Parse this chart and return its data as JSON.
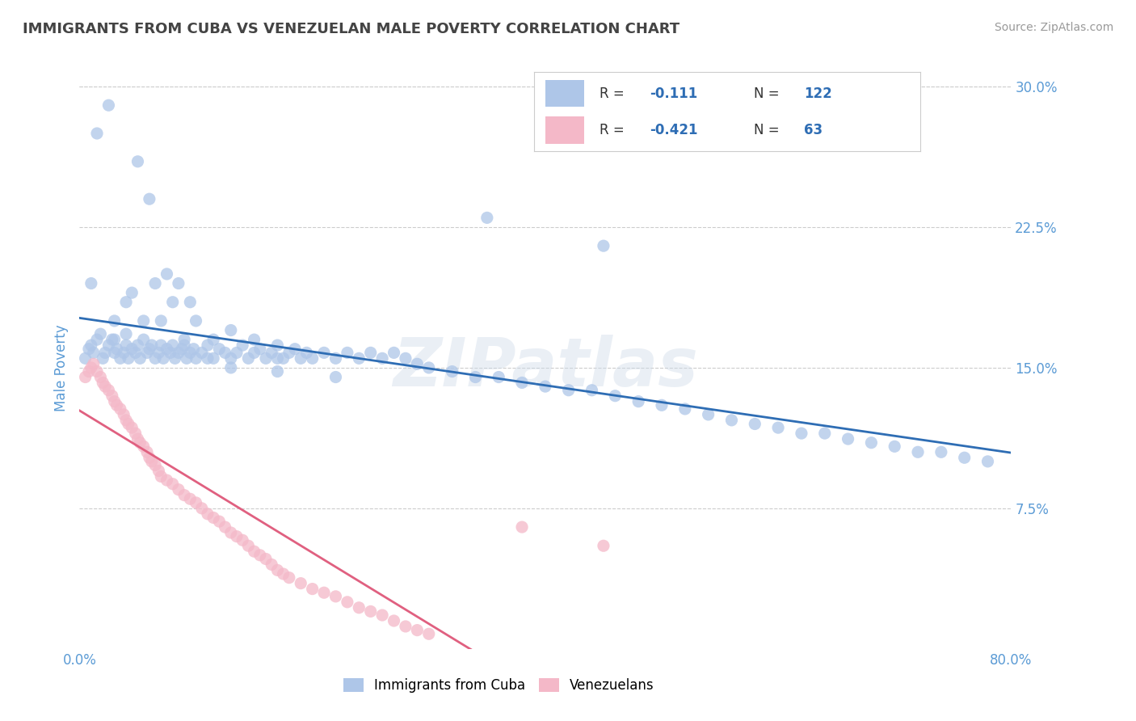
{
  "title": "IMMIGRANTS FROM CUBA VS VENEZUELAN MALE POVERTY CORRELATION CHART",
  "source": "Source: ZipAtlas.com",
  "ylabel": "Male Poverty",
  "xlim": [
    0.0,
    0.8
  ],
  "ylim": [
    0.0,
    0.3
  ],
  "xtick_vals": [
    0.0,
    0.8
  ],
  "xtick_labels": [
    "0.0%",
    "80.0%"
  ],
  "ytick_vals": [
    0.075,
    0.15,
    0.225,
    0.3
  ],
  "ytick_labels": [
    "7.5%",
    "15.0%",
    "22.5%",
    "30.0%"
  ],
  "cuba_color": "#aec6e8",
  "cuba_edge": "none",
  "venezuela_color": "#f4b8c8",
  "venezuela_edge": "none",
  "trend_cuba_color": "#2e6db4",
  "trend_venezuela_color": "#e06080",
  "legend_r_cuba": "-0.111",
  "legend_n_cuba": "122",
  "legend_r_venezuela": "-0.421",
  "legend_n_venezuela": "63",
  "cuba_label": "Immigrants from Cuba",
  "venezuela_label": "Venezuelans",
  "watermark": "ZIPatlas",
  "background_color": "#ffffff",
  "grid_color": "#cccccc",
  "title_color": "#444444",
  "ylabel_color": "#5b9bd5",
  "tick_label_color": "#5b9bd5",
  "cuba_x": [
    0.005,
    0.008,
    0.01,
    0.012,
    0.015,
    0.018,
    0.02,
    0.022,
    0.025,
    0.028,
    0.03,
    0.032,
    0.035,
    0.038,
    0.04,
    0.04,
    0.042,
    0.045,
    0.048,
    0.05,
    0.052,
    0.055,
    0.058,
    0.06,
    0.062,
    0.065,
    0.068,
    0.07,
    0.072,
    0.075,
    0.078,
    0.08,
    0.082,
    0.085,
    0.088,
    0.09,
    0.092,
    0.095,
    0.098,
    0.1,
    0.105,
    0.11,
    0.115,
    0.12,
    0.125,
    0.13,
    0.135,
    0.14,
    0.145,
    0.15,
    0.155,
    0.16,
    0.165,
    0.17,
    0.175,
    0.18,
    0.185,
    0.19,
    0.195,
    0.2,
    0.21,
    0.22,
    0.23,
    0.24,
    0.25,
    0.26,
    0.27,
    0.28,
    0.29,
    0.3,
    0.32,
    0.34,
    0.36,
    0.38,
    0.4,
    0.42,
    0.44,
    0.46,
    0.48,
    0.5,
    0.52,
    0.54,
    0.56,
    0.58,
    0.6,
    0.62,
    0.64,
    0.66,
    0.68,
    0.7,
    0.72,
    0.74,
    0.76,
    0.78,
    0.35,
    0.45,
    0.025,
    0.015,
    0.01,
    0.04,
    0.05,
    0.06,
    0.075,
    0.085,
    0.095,
    0.03,
    0.045,
    0.055,
    0.065,
    0.08,
    0.1,
    0.115,
    0.13,
    0.15,
    0.17,
    0.03,
    0.07,
    0.09,
    0.11,
    0.13,
    0.17,
    0.22
  ],
  "cuba_y": [
    0.155,
    0.16,
    0.162,
    0.158,
    0.165,
    0.168,
    0.155,
    0.158,
    0.162,
    0.165,
    0.158,
    0.16,
    0.155,
    0.158,
    0.162,
    0.168,
    0.155,
    0.16,
    0.158,
    0.162,
    0.155,
    0.165,
    0.158,
    0.16,
    0.162,
    0.155,
    0.158,
    0.162,
    0.155,
    0.16,
    0.158,
    0.162,
    0.155,
    0.158,
    0.16,
    0.162,
    0.155,
    0.158,
    0.16,
    0.155,
    0.158,
    0.162,
    0.155,
    0.16,
    0.158,
    0.155,
    0.158,
    0.162,
    0.155,
    0.158,
    0.16,
    0.155,
    0.158,
    0.162,
    0.155,
    0.158,
    0.16,
    0.155,
    0.158,
    0.155,
    0.158,
    0.155,
    0.158,
    0.155,
    0.158,
    0.155,
    0.158,
    0.155,
    0.152,
    0.15,
    0.148,
    0.145,
    0.145,
    0.142,
    0.14,
    0.138,
    0.138,
    0.135,
    0.132,
    0.13,
    0.128,
    0.125,
    0.122,
    0.12,
    0.118,
    0.115,
    0.115,
    0.112,
    0.11,
    0.108,
    0.105,
    0.105,
    0.102,
    0.1,
    0.23,
    0.215,
    0.29,
    0.275,
    0.195,
    0.185,
    0.26,
    0.24,
    0.2,
    0.195,
    0.185,
    0.175,
    0.19,
    0.175,
    0.195,
    0.185,
    0.175,
    0.165,
    0.17,
    0.165,
    0.155,
    0.165,
    0.175,
    0.165,
    0.155,
    0.15,
    0.148,
    0.145
  ],
  "venezuela_x": [
    0.005,
    0.008,
    0.01,
    0.012,
    0.015,
    0.018,
    0.02,
    0.022,
    0.025,
    0.028,
    0.03,
    0.032,
    0.035,
    0.038,
    0.04,
    0.042,
    0.045,
    0.048,
    0.05,
    0.052,
    0.055,
    0.058,
    0.06,
    0.062,
    0.065,
    0.068,
    0.07,
    0.075,
    0.08,
    0.085,
    0.09,
    0.095,
    0.1,
    0.105,
    0.11,
    0.115,
    0.12,
    0.125,
    0.13,
    0.135,
    0.14,
    0.145,
    0.15,
    0.155,
    0.16,
    0.165,
    0.17,
    0.175,
    0.18,
    0.19,
    0.2,
    0.21,
    0.22,
    0.23,
    0.24,
    0.25,
    0.26,
    0.27,
    0.28,
    0.29,
    0.3,
    0.38,
    0.45
  ],
  "venezuela_y": [
    0.145,
    0.148,
    0.15,
    0.152,
    0.148,
    0.145,
    0.142,
    0.14,
    0.138,
    0.135,
    0.132,
    0.13,
    0.128,
    0.125,
    0.122,
    0.12,
    0.118,
    0.115,
    0.112,
    0.11,
    0.108,
    0.105,
    0.102,
    0.1,
    0.098,
    0.095,
    0.092,
    0.09,
    0.088,
    0.085,
    0.082,
    0.08,
    0.078,
    0.075,
    0.072,
    0.07,
    0.068,
    0.065,
    0.062,
    0.06,
    0.058,
    0.055,
    0.052,
    0.05,
    0.048,
    0.045,
    0.042,
    0.04,
    0.038,
    0.035,
    0.032,
    0.03,
    0.028,
    0.025,
    0.022,
    0.02,
    0.018,
    0.015,
    0.012,
    0.01,
    0.008,
    0.065,
    0.055
  ]
}
